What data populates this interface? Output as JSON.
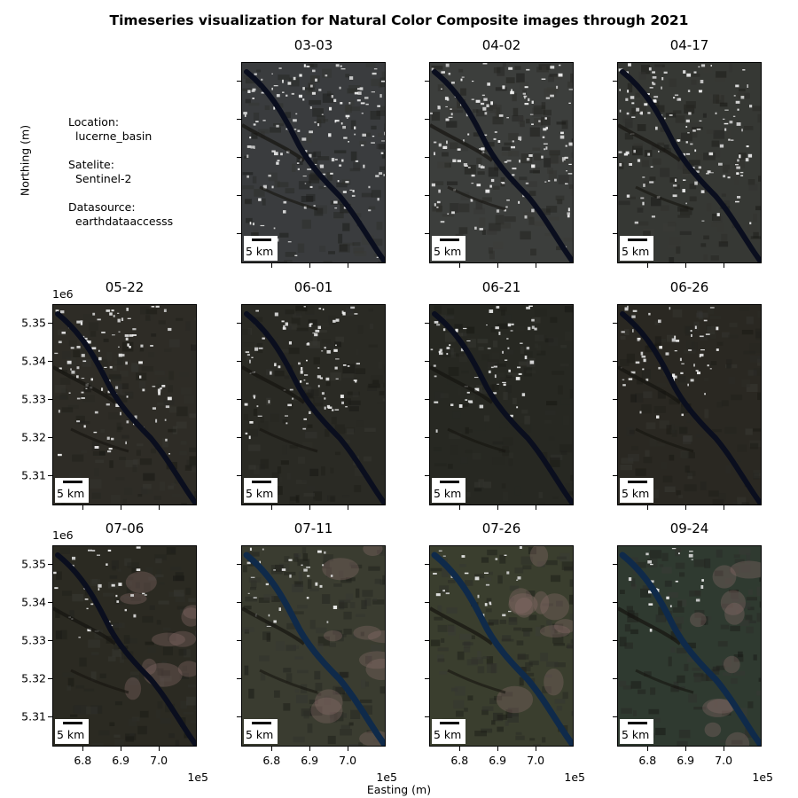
{
  "figure": {
    "title": "Timeseries visualization for Natural Color Composite images through 2021",
    "xlabel": "Easting (m)",
    "ylabel": "Northing (m)"
  },
  "info": {
    "location_label": "Location:",
    "location_value": "lucerne_basin",
    "satellite_label": "Satelite:",
    "satellite_value": "Sentinel-2",
    "datasource_label": "Datasource:",
    "datasource_value": "earthdataaccesss"
  },
  "chart_data": {
    "type": "image-grid",
    "title": "Timeseries visualization for Natural Color Composite images through 2021",
    "xlabel": "Easting (m)",
    "ylabel": "Northing (m)",
    "x_ticks": [
      6.8,
      6.9,
      7.0
    ],
    "x_tick_labels": [
      "6.8",
      "6.9",
      "7.0"
    ],
    "x_offset_label": "1e5",
    "xlim": [
      6.72,
      7.1
    ],
    "y_ticks": [
      5.31,
      5.32,
      5.33,
      5.34,
      5.35
    ],
    "y_tick_labels": [
      "5.31",
      "5.32",
      "5.33",
      "5.34",
      "5.35"
    ],
    "y_offset_label": "1e6",
    "ylim": [
      5.3022,
      5.3548
    ],
    "scalebar_label": "5 km",
    "colors": {
      "terrain_dark": "#1a1a14",
      "terrain_vegetation": "#2d3323",
      "snow": "#e8e8e8",
      "river": "#0a0e1e",
      "river_summer": "#0f2a4a"
    },
    "panels": [
      {
        "date": "03-03",
        "row": 0,
        "col": 1,
        "snow": 0.75,
        "tone": "#3a3c3e",
        "lake_blue": false,
        "pink": false
      },
      {
        "date": "04-02",
        "row": 0,
        "col": 2,
        "snow": 0.7,
        "tone": "#3c3e3c",
        "lake_blue": false,
        "pink": false
      },
      {
        "date": "04-17",
        "row": 0,
        "col": 3,
        "snow": 0.62,
        "tone": "#363834",
        "lake_blue": false,
        "pink": false
      },
      {
        "date": "05-22",
        "row": 1,
        "col": 0,
        "snow": 0.5,
        "tone": "#2e2c26",
        "lake_blue": false,
        "pink": false
      },
      {
        "date": "06-01",
        "row": 1,
        "col": 1,
        "snow": 0.42,
        "tone": "#2a2a24",
        "lake_blue": false,
        "pink": false
      },
      {
        "date": "06-21",
        "row": 1,
        "col": 2,
        "snow": 0.3,
        "tone": "#272822",
        "lake_blue": false,
        "pink": false
      },
      {
        "date": "06-26",
        "row": 1,
        "col": 3,
        "snow": 0.27,
        "tone": "#2a2822",
        "lake_blue": false,
        "pink": false
      },
      {
        "date": "07-06",
        "row": 2,
        "col": 0,
        "snow": 0.15,
        "tone": "#2b2a22",
        "lake_blue": false,
        "pink": true
      },
      {
        "date": "07-11",
        "row": 2,
        "col": 1,
        "snow": 0.14,
        "tone": "#3a3c30",
        "lake_blue": true,
        "pink": true
      },
      {
        "date": "07-26",
        "row": 2,
        "col": 2,
        "snow": 0.12,
        "tone": "#3a3e2e",
        "lake_blue": true,
        "pink": true
      },
      {
        "date": "09-24",
        "row": 2,
        "col": 3,
        "snow": 0.1,
        "tone": "#2f3a30",
        "lake_blue": true,
        "pink": true
      }
    ]
  }
}
